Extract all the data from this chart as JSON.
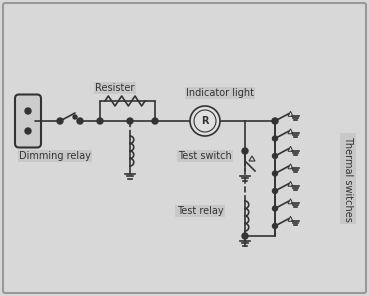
{
  "bg_color": "#d8d8d8",
  "border_color": "#888888",
  "line_color": "#333333",
  "label_bg": "#c8c8c8",
  "title": "",
  "labels": {
    "resister": "Resister",
    "indicator": "Indicator light",
    "dimming": "Dimming relay",
    "test_switch": "Test switch",
    "test_relay": "Test relay",
    "thermal": "Thermal switches"
  },
  "figsize": [
    3.69,
    2.96
  ],
  "dpi": 100
}
